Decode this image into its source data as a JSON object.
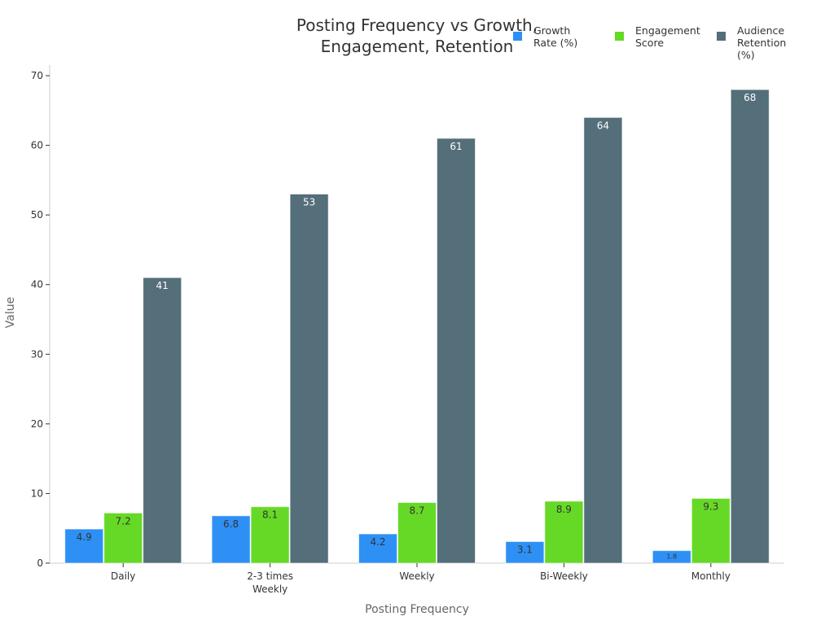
{
  "chart_data": {
    "type": "bar",
    "title": "Posting Frequency vs Growth, Engagement, Retention",
    "title_lines": [
      "Posting Frequency vs Growth,",
      "Engagement, Retention"
    ],
    "xlabel": "Posting Frequency",
    "ylabel": "Value",
    "ylim": [
      0,
      70
    ],
    "yticks": [
      0,
      10,
      20,
      30,
      40,
      50,
      60,
      70
    ],
    "categories": [
      "Daily",
      "2-3 times Weekly",
      "Weekly",
      "Bi-Weekly",
      "Monthly"
    ],
    "category_lines": [
      [
        "Daily"
      ],
      [
        "2-3 times",
        "Weekly"
      ],
      [
        "Weekly"
      ],
      [
        "Bi-Weekly"
      ],
      [
        "Monthly"
      ]
    ],
    "legend_position": "top-right",
    "series": [
      {
        "name": "Growth Rate (%)",
        "name_lines": [
          "Growth",
          "Rate (%)"
        ],
        "color": "#2e90f5",
        "label_color": "#333333",
        "values": [
          4.9,
          6.8,
          4.2,
          3.1,
          1.8
        ]
      },
      {
        "name": "Engagement Score",
        "name_lines": [
          "Engagement",
          "Score"
        ],
        "color": "#66d926",
        "label_color": "#333333",
        "values": [
          7.2,
          8.1,
          8.7,
          8.9,
          9.3
        ]
      },
      {
        "name": "Audience Retention (%)",
        "name_lines": [
          "Audience",
          "Retention (%)"
        ],
        "color": "#546e7a",
        "label_color": "#ffffff",
        "values": [
          41,
          53,
          61,
          64,
          68
        ]
      }
    ]
  }
}
